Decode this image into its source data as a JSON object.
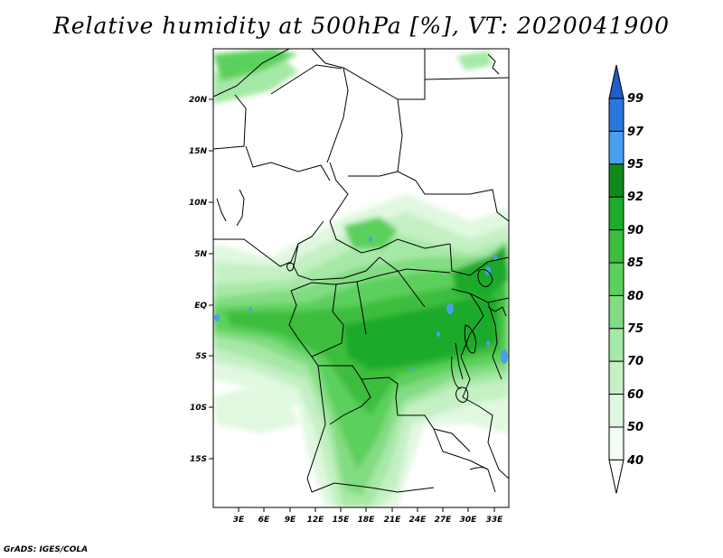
{
  "title": "Relative humidity at 500hPa [%], VT: 2020041900",
  "credit": "GrADS: IGES/COLA",
  "map": {
    "lat_ticks": [
      "20N",
      "15N",
      "10N",
      "5N",
      "EQ",
      "5S",
      "10S",
      "15S"
    ],
    "lon_ticks": [
      "3E",
      "6E",
      "9E",
      "12E",
      "15E",
      "18E",
      "21E",
      "24E",
      "27E",
      "30E",
      "33E"
    ]
  },
  "colorbar": {
    "labels": [
      "99",
      "97",
      "95",
      "92",
      "90",
      "85",
      "80",
      "75",
      "70",
      "60",
      "50",
      "40"
    ],
    "colors": [
      "#1c5ecc",
      "#2a78dd",
      "#4a9ef0",
      "#0f8a1a",
      "#1faa2a",
      "#3cbd3c",
      "#5cd05c",
      "#82dc82",
      "#a6e8a6",
      "#c4f0c4",
      "#e0f8e0",
      "#f3fdf3",
      "#ffffff"
    ]
  }
}
